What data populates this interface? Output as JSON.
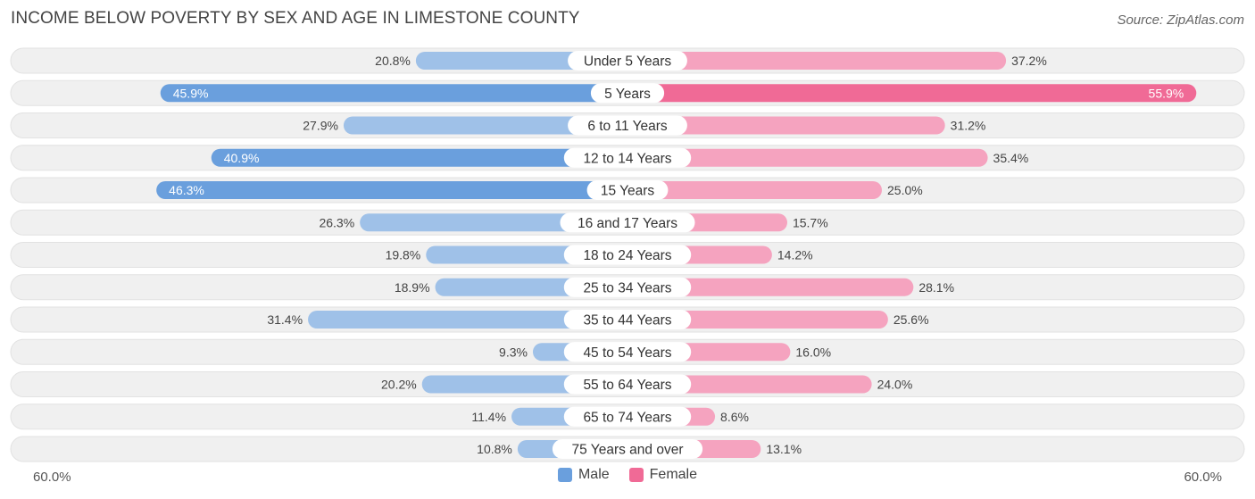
{
  "title": "INCOME BELOW POVERTY BY SEX AND AGE IN LIMESTONE COUNTY",
  "source": "Source: ZipAtlas.com",
  "colors": {
    "male": "#6a9fdd",
    "male_light": "#9fc1e8",
    "female": "#f06a96",
    "female_light": "#f5a3bf",
    "row_bg": "#f0f0f0"
  },
  "chart_data": {
    "type": "bar",
    "orientation": "horizontal-diverging",
    "title": "INCOME BELOW POVERTY BY SEX AND AGE IN LIMESTONE COUNTY",
    "categories": [
      "Under 5 Years",
      "5 Years",
      "6 to 11 Years",
      "12 to 14 Years",
      "15 Years",
      "16 and 17 Years",
      "18 to 24 Years",
      "25 to 34 Years",
      "35 to 44 Years",
      "45 to 54 Years",
      "55 to 64 Years",
      "65 to 74 Years",
      "75 Years and over"
    ],
    "series": [
      {
        "name": "Male",
        "values": [
          20.8,
          45.9,
          27.9,
          40.9,
          46.3,
          26.3,
          19.8,
          18.9,
          31.4,
          9.3,
          20.2,
          11.4,
          10.8
        ],
        "labels": [
          "20.8%",
          "45.9%",
          "27.9%",
          "40.9%",
          "46.3%",
          "26.3%",
          "19.8%",
          "18.9%",
          "31.4%",
          "9.3%",
          "20.2%",
          "11.4%",
          "10.8%"
        ]
      },
      {
        "name": "Female",
        "values": [
          37.2,
          55.9,
          31.2,
          35.4,
          25.0,
          15.7,
          14.2,
          28.1,
          25.6,
          16.0,
          24.0,
          8.6,
          13.1
        ],
        "labels": [
          "37.2%",
          "55.9%",
          "31.2%",
          "35.4%",
          "25.0%",
          "15.7%",
          "14.2%",
          "28.1%",
          "25.6%",
          "16.0%",
          "24.0%",
          "8.6%",
          "13.1%"
        ]
      }
    ],
    "xlim": [
      -60,
      60
    ],
    "axis_min_label": "60.0%",
    "axis_max_label": "60.0%",
    "legend_position": "bottom-center"
  }
}
